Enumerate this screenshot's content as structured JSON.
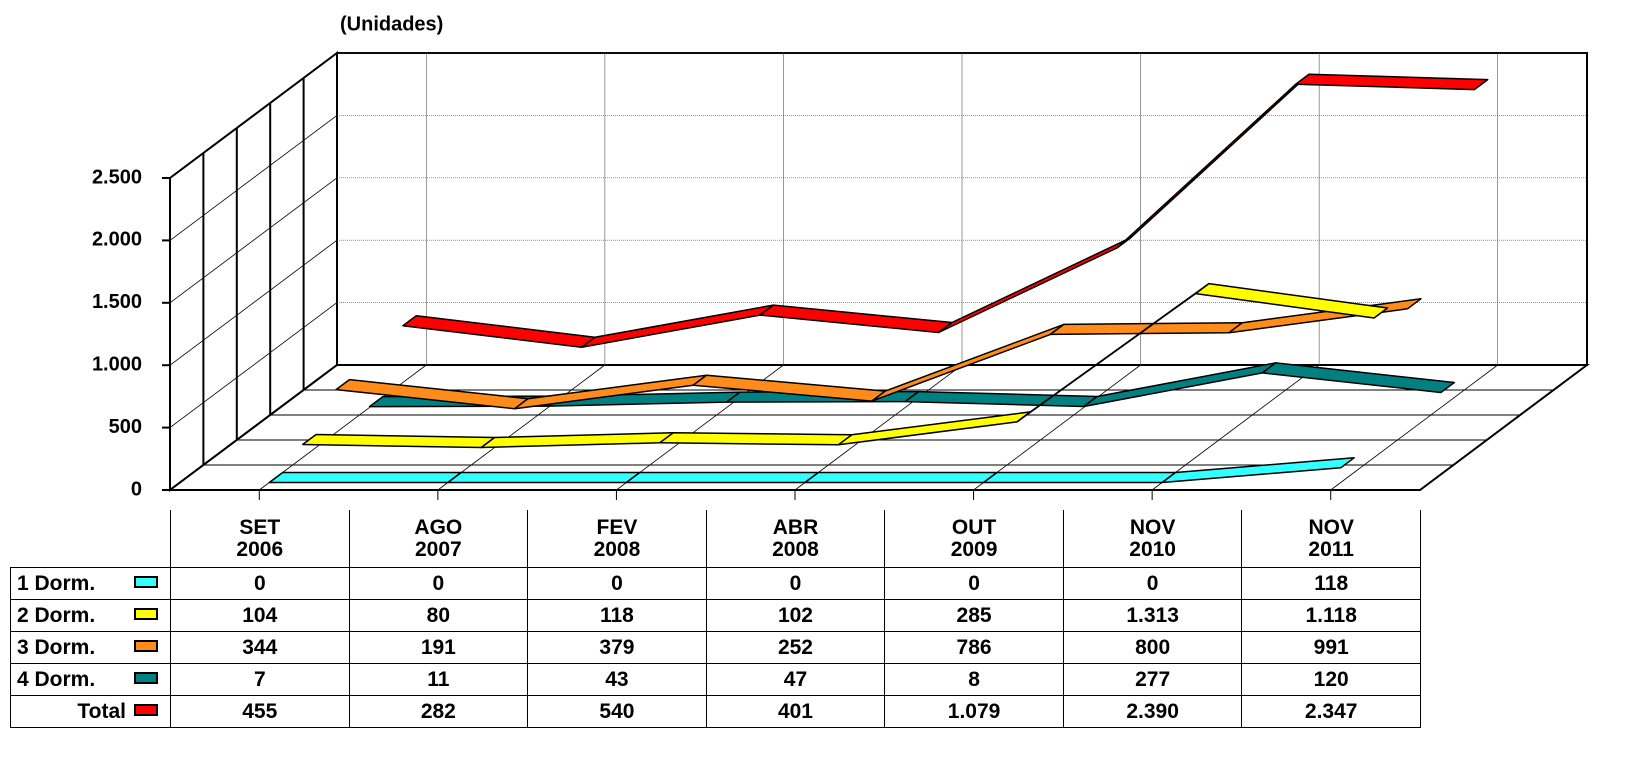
{
  "chart_data": {
    "type": "line3d",
    "y_label": "(Unidades)",
    "categories": [
      "SET\n2006",
      "AGO\n2007",
      "FEV\n2008",
      "ABR\n2008",
      "OUT\n2009",
      "NOV\n2010",
      "NOV\n2011"
    ],
    "series": [
      {
        "name": "1 Dorm.",
        "color": "#33ffff",
        "values": [
          0,
          0,
          0,
          0,
          0,
          0,
          118
        ]
      },
      {
        "name": "2 Dorm.",
        "color": "#ffff00",
        "values": [
          104,
          80,
          118,
          102,
          285,
          1313,
          1118
        ],
        "value_labels": [
          "104",
          "80",
          "118",
          "102",
          "285",
          "1.313",
          "1.118"
        ]
      },
      {
        "name": "3 Dorm.",
        "color": "#ff8c1a",
        "values": [
          344,
          191,
          379,
          252,
          786,
          800,
          991
        ]
      },
      {
        "name": "4 Dorm.",
        "color": "#008080",
        "values": [
          7,
          11,
          43,
          47,
          8,
          277,
          120
        ]
      },
      {
        "name": "Total",
        "color": "#ff0000",
        "values": [
          455,
          282,
          540,
          401,
          1079,
          2390,
          2347
        ],
        "value_labels": [
          "455",
          "282",
          "540",
          "401",
          "1.079",
          "2.390",
          "2.347"
        ]
      }
    ],
    "ylim": [
      0,
      2500
    ],
    "yticks": [
      0,
      500,
      {
        "value": 1000,
        "label": "1.000"
      },
      {
        "value": 1500,
        "label": "1.500"
      },
      {
        "value": 2000,
        "label": "2.000"
      },
      {
        "value": 2500,
        "label": "2.500"
      }
    ],
    "grid": true
  }
}
